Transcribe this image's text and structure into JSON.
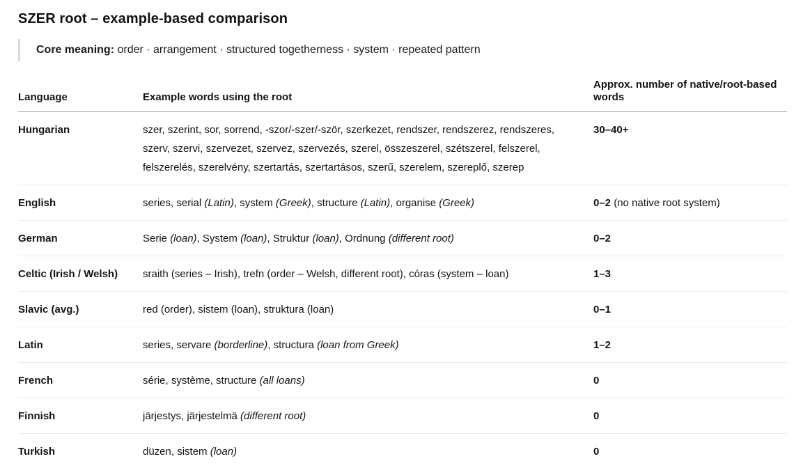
{
  "page": {
    "title": "SZER root – example-based comparison",
    "core_meaning": {
      "label": "Core meaning:",
      "text": " order · arrangement · structured togetherness · system · repeated pattern"
    }
  },
  "table": {
    "headers": {
      "language": "Language",
      "examples": "Example words using the root",
      "count": "Approx. number of native/root-based words"
    },
    "rows": [
      {
        "language": "Hungarian",
        "examples": [
          {
            "text": "szer, szerint, sor, sorrend, -szor/-szer/-ször, szerkezet, rendszer, rendszerez, rendszeres, szerv, szervi, szervezet, szervez, szervezés, szerel, összeszerel, szétszerel, felszerel, felszerelés, szerelvény, szertartás, szertartásos, szerű, szerelem, szereplő, szerep",
            "italic": false
          }
        ],
        "count": "30–40+",
        "count_note": ""
      },
      {
        "language": "English",
        "examples": [
          {
            "text": "series, serial ",
            "italic": false
          },
          {
            "text": "(Latin)",
            "italic": true
          },
          {
            "text": ", system ",
            "italic": false
          },
          {
            "text": "(Greek)",
            "italic": true
          },
          {
            "text": ", structure ",
            "italic": false
          },
          {
            "text": "(Latin)",
            "italic": true
          },
          {
            "text": ", organise ",
            "italic": false
          },
          {
            "text": "(Greek)",
            "italic": true
          }
        ],
        "count": "0–2",
        "count_note": " (no native root system)"
      },
      {
        "language": "German",
        "examples": [
          {
            "text": "Serie ",
            "italic": false
          },
          {
            "text": "(loan)",
            "italic": true
          },
          {
            "text": ", System ",
            "italic": false
          },
          {
            "text": "(loan)",
            "italic": true
          },
          {
            "text": ", Struktur ",
            "italic": false
          },
          {
            "text": "(loan)",
            "italic": true
          },
          {
            "text": ", Ordnung ",
            "italic": false
          },
          {
            "text": "(different root)",
            "italic": true
          }
        ],
        "count": "0–2",
        "count_note": ""
      },
      {
        "language": "Celtic (Irish / Welsh)",
        "examples": [
          {
            "text": "sraith (series – Irish), trefn (order – Welsh, different root), córas (system – loan)",
            "italic": false
          }
        ],
        "count": "1–3",
        "count_note": ""
      },
      {
        "language": "Slavic (avg.)",
        "examples": [
          {
            "text": "red (order), sistem (loan), struktura (loan)",
            "italic": false
          }
        ],
        "count": "0–1",
        "count_note": ""
      },
      {
        "language": "Latin",
        "examples": [
          {
            "text": "series, servare ",
            "italic": false
          },
          {
            "text": "(borderline)",
            "italic": true
          },
          {
            "text": ", structura ",
            "italic": false
          },
          {
            "text": "(loan from Greek)",
            "italic": true
          }
        ],
        "count": "1–2",
        "count_note": ""
      },
      {
        "language": "French",
        "examples": [
          {
            "text": "série, système, structure ",
            "italic": false
          },
          {
            "text": "(all loans)",
            "italic": true
          }
        ],
        "count": "0",
        "count_note": ""
      },
      {
        "language": "Finnish",
        "examples": [
          {
            "text": "järjestys, järjestelmä ",
            "italic": false
          },
          {
            "text": "(different root)",
            "italic": true
          }
        ],
        "count": "0",
        "count_note": ""
      },
      {
        "language": "Turkish",
        "examples": [
          {
            "text": "düzen, sistem ",
            "italic": false
          },
          {
            "text": "(loan)",
            "italic": true
          }
        ],
        "count": "0",
        "count_note": ""
      }
    ]
  }
}
